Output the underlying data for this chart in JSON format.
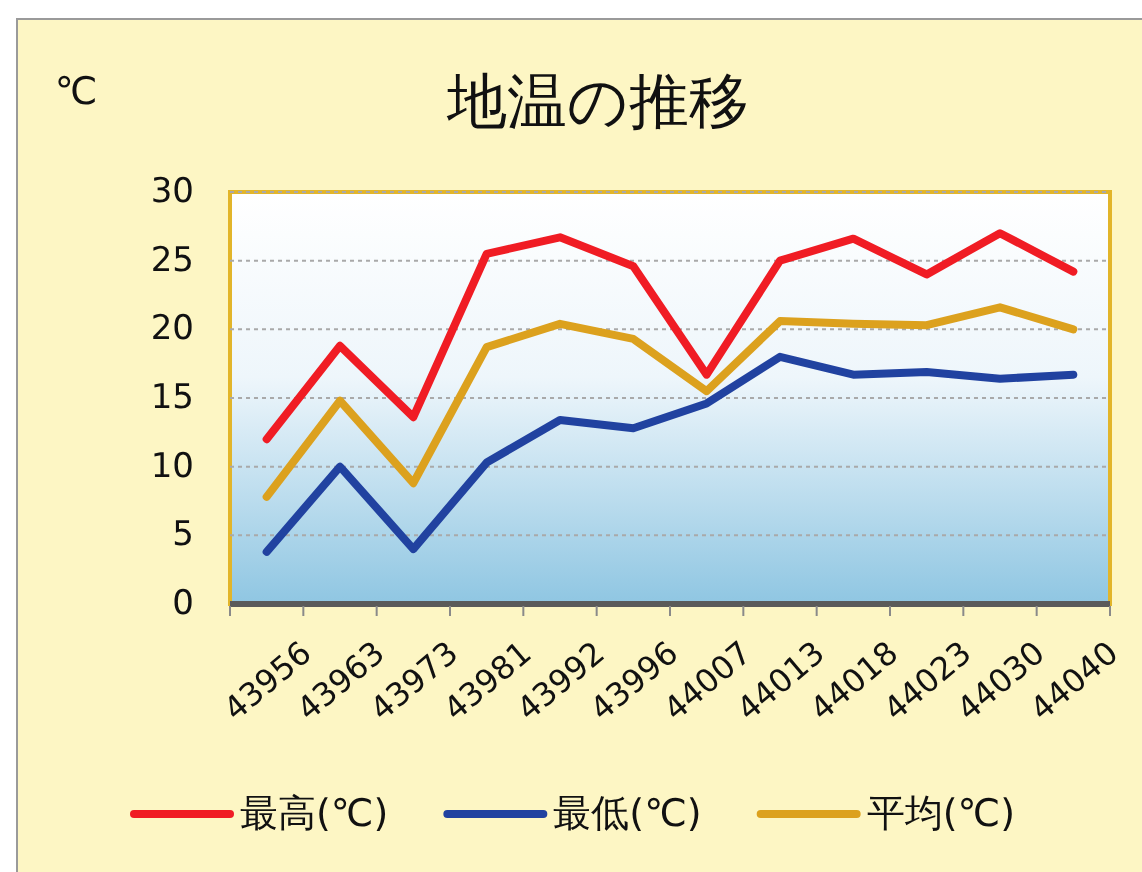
{
  "chart_data": {
    "type": "line",
    "title": "地温の推移",
    "ylabel": "℃",
    "categories": [
      "43956",
      "43963",
      "43973",
      "43981",
      "43992",
      "43996",
      "44007",
      "44013",
      "44018",
      "44023",
      "44030",
      "44040"
    ],
    "series": [
      {
        "name": "最高(℃)",
        "color": "#f01c24",
        "values": [
          12.0,
          18.8,
          13.6,
          25.5,
          26.7,
          24.6,
          16.7,
          25.0,
          26.6,
          24.0,
          27.0,
          24.2
        ]
      },
      {
        "name": "最低(℃)",
        "color": "#2142a0",
        "values": [
          3.8,
          10.0,
          4.0,
          10.3,
          13.4,
          12.8,
          14.6,
          18.0,
          16.7,
          16.9,
          16.4,
          16.7
        ]
      },
      {
        "name": "平均(℃)",
        "color": "#dca11e",
        "values": [
          7.8,
          14.8,
          8.8,
          18.7,
          20.4,
          19.3,
          15.5,
          20.6,
          20.4,
          20.3,
          21.6,
          20.0
        ]
      }
    ],
    "ylim": [
      0,
      30
    ],
    "yticks": [
      0,
      5,
      10,
      15,
      20,
      25,
      30
    ],
    "grid": "y",
    "legend": "bottom"
  }
}
